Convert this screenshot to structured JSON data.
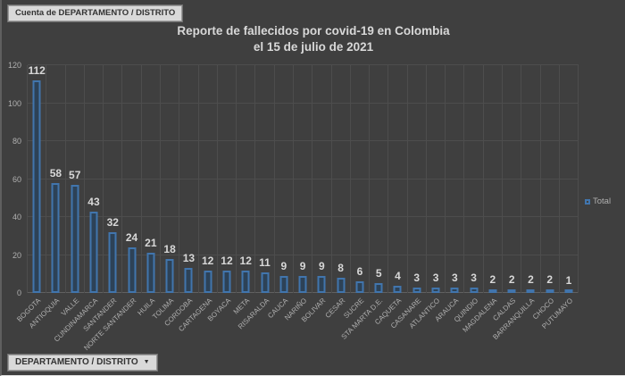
{
  "title": {
    "line1": "Reporte de fallecidos por covid-19 en Colombia",
    "line2": "el 15 de julio de 2021"
  },
  "buttons": {
    "count_field": "Cuenta de DEPARTAMENTO / DISTRITO",
    "axis_filter": "DEPARTAMENTO / DISTRITO",
    "arrow": "▼"
  },
  "legend": {
    "label": "Total"
  },
  "colors": {
    "bg": "#3f3f3f",
    "grid": "#4d4d4d",
    "bar_border": "#4175ad",
    "bar_fill": "#2d4257",
    "title_text": "#d8d8d8",
    "data_label_text": "#d8d8d8",
    "axis_text": "#b0b0b0",
    "button_bg": "#d9d9d9",
    "button_text": "#333333"
  },
  "chart_data": {
    "type": "bar",
    "title": "Reporte de fallecidos por covid-19 en Colombia el 15 de julio de 2021",
    "series_name": "Total",
    "categories": [
      "BOGOTA",
      "ANTIOQUIA",
      "VALLE",
      "CUNDINAMARCA",
      "SANTANDER",
      "NORTE SANTANDER",
      "HUILA",
      "TOLIMA",
      "CORDOBA",
      "CARTAGENA",
      "BOYACA",
      "META",
      "RISARALDA",
      "CAUCA",
      "NARIÑO",
      "BOLIVAR",
      "CESAR",
      "SUCRE",
      "STA MARTA D.E.",
      "CAQUETA",
      "CASANARE",
      "ATLANTICO",
      "ARAUCA",
      "QUINDIO",
      "MAGDALENA",
      "CALDAS",
      "BARRANQUILLA",
      "CHOCO",
      "PUTUMAYO"
    ],
    "values": [
      112,
      58,
      57,
      43,
      32,
      24,
      21,
      18,
      13,
      12,
      12,
      12,
      11,
      9,
      9,
      9,
      8,
      6,
      5,
      4,
      3,
      3,
      3,
      3,
      2,
      2,
      2,
      2,
      1
    ],
    "xlabel": "DEPARTAMENTO / DISTRITO",
    "ylabel": "",
    "ylim": [
      0,
      120
    ],
    "yticks": [
      0,
      20,
      40,
      60,
      80,
      100,
      120
    ],
    "grid": true,
    "legend_position": "right"
  }
}
